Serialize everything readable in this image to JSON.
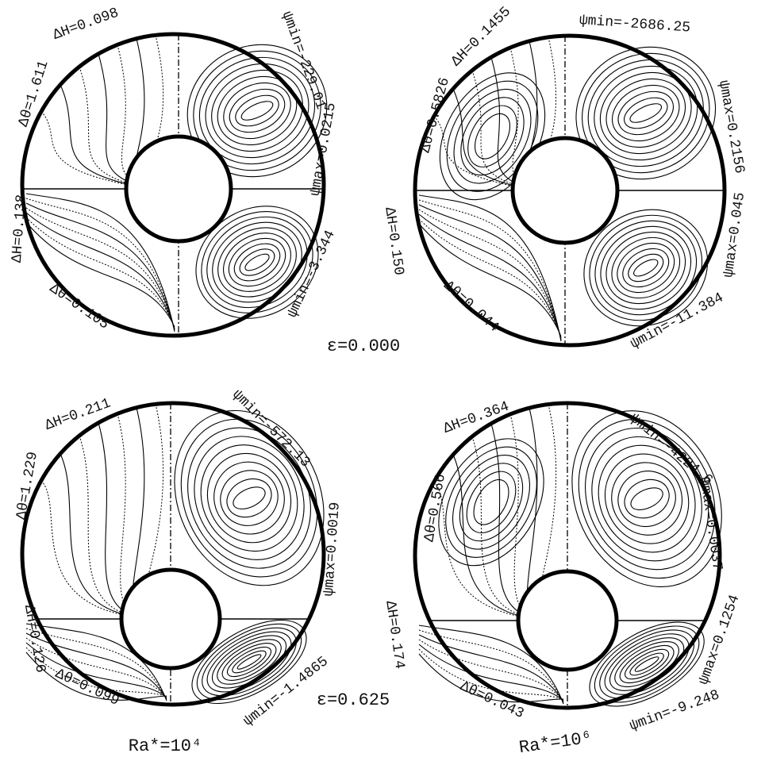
{
  "panels": [
    {
      "labels": [
        "ΔH=0.098",
        "ψmin=-229.01",
        "Δθ=1.611",
        "ψmax=0.0215",
        "ΔH=0.138",
        "ψmin=-3.344",
        "Δθ=0.105"
      ]
    },
    {
      "labels": [
        "ΔH=0.1455",
        "ψmin=-2686.25",
        "ψmax=0.2156",
        "Δθ=0.5826",
        "ψmax=0.045",
        "ΔH=0.150",
        "Δθ=0.044",
        "ψmin=-11.384"
      ]
    },
    {
      "labels": [
        "ΔH=0.211",
        "ψmin=-572.13",
        "Δθ=1.229",
        "ψmax=0.0019",
        "ΔH=0.126",
        "Δθ=0.099",
        "ψmin=-1.4865"
      ]
    },
    {
      "labels": [
        "ΔH=0.364",
        "ψmin=-4224.6",
        "Δθ=0.566",
        "ψmax=0.0037",
        "ψmax=0.1254",
        "ΔH=0.174",
        "Δθ=0.043",
        "ψmin=-9.248"
      ]
    }
  ],
  "epsilon_labels": [
    "ε=0.000",
    "ε=0.625"
  ],
  "ra_labels": [
    "Ra*=10⁴",
    "Ra*=10⁶"
  ]
}
